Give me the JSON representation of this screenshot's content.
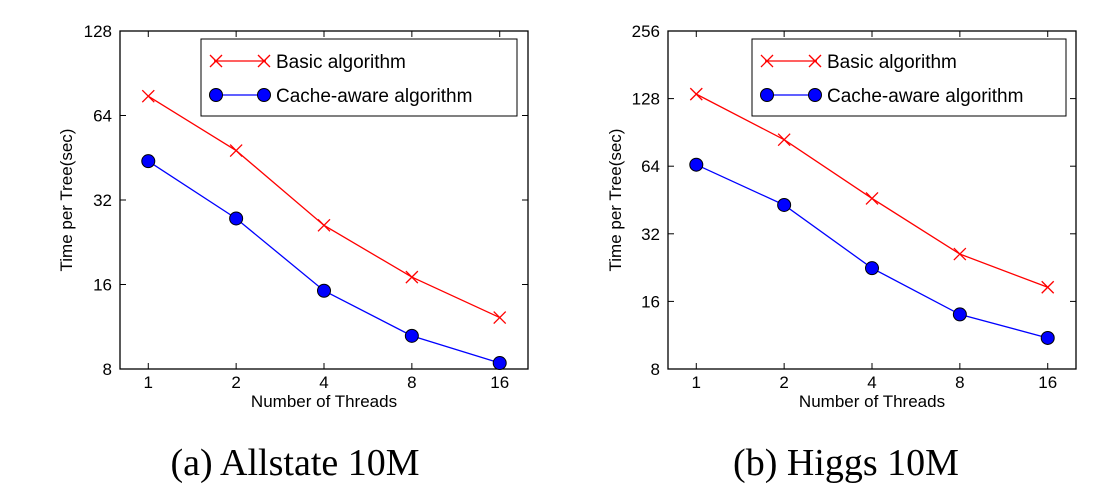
{
  "chart_data": [
    {
      "type": "line",
      "caption": "(a) Allstate 10M",
      "xlabel": "Number of Threads",
      "ylabel": "Time per Tree(sec)",
      "x_scale": "log2",
      "y_scale": "log2",
      "xlim": [
        0.8,
        20
      ],
      "ylim": [
        8,
        128
      ],
      "x_ticks": [
        1,
        2,
        4,
        8,
        16
      ],
      "y_ticks": [
        8,
        16,
        32,
        64,
        128
      ],
      "x": [
        1,
        2,
        4,
        8,
        16
      ],
      "legend_position": "top-right",
      "series": [
        {
          "name": "Basic algorithm",
          "color": "#ff0000",
          "marker": "x",
          "values": [
            75,
            48,
            26,
            17,
            12.2
          ]
        },
        {
          "name": "Cache-aware algorithm",
          "color": "#0000ff",
          "marker": "circle",
          "values": [
            44,
            27.5,
            15.2,
            10.5,
            8.4
          ]
        }
      ]
    },
    {
      "type": "line",
      "caption": "(b) Higgs 10M",
      "xlabel": "Number of Threads",
      "ylabel": "Time per Tree(sec)",
      "x_scale": "log2",
      "y_scale": "log2",
      "xlim": [
        0.8,
        20
      ],
      "ylim": [
        8,
        256
      ],
      "x_ticks": [
        1,
        2,
        4,
        8,
        16
      ],
      "y_ticks": [
        8,
        16,
        32,
        64,
        128,
        256
      ],
      "x": [
        1,
        2,
        4,
        8,
        16
      ],
      "legend_position": "top-right",
      "series": [
        {
          "name": "Basic algorithm",
          "color": "#ff0000",
          "marker": "x",
          "values": [
            134,
            84,
            46,
            26,
            18.5
          ]
        },
        {
          "name": "Cache-aware algorithm",
          "color": "#0000ff",
          "marker": "circle",
          "values": [
            65,
            43,
            22.5,
            14,
            11
          ]
        }
      ]
    }
  ]
}
